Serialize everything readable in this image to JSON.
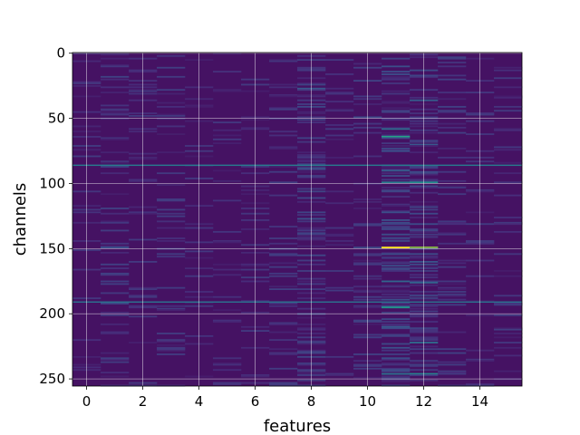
{
  "chart_data": {
    "type": "heatmap",
    "title": "",
    "xlabel": "features",
    "ylabel": "channels",
    "n_columns": 16,
    "n_rows": 256,
    "xlim": [
      -0.5,
      15.5
    ],
    "ylim": [
      255.5,
      -0.5
    ],
    "x_ticks": [
      0,
      2,
      4,
      6,
      8,
      10,
      12,
      14
    ],
    "x_tick_labels": [
      "0",
      "2",
      "4",
      "6",
      "8",
      "10",
      "12",
      "14"
    ],
    "y_ticks": [
      0,
      50,
      100,
      150,
      200,
      250
    ],
    "y_tick_labels": [
      "0",
      "50",
      "100",
      "150",
      "200",
      "250"
    ],
    "grid": true,
    "colormap": "viridis",
    "background_value": 0.05,
    "column_activity": [
      0.1,
      0.22,
      0.1,
      0.14,
      0.08,
      0.1,
      0.1,
      0.16,
      0.3,
      0.1,
      0.22,
      0.45,
      0.38,
      0.18,
      0.1,
      0.12
    ],
    "hot_cells": [
      {
        "column": 11,
        "row": 149,
        "value": 1.0
      },
      {
        "column": 12,
        "row": 149,
        "value": 0.85
      },
      {
        "column": 11,
        "row": 64,
        "value": 0.58
      },
      {
        "column": 11,
        "row": 195,
        "value": 0.52
      },
      {
        "column": 12,
        "row": 99,
        "value": 0.48
      },
      {
        "column": 12,
        "row": 246,
        "value": 0.45
      },
      {
        "column": 11,
        "row": 99,
        "value": 0.42
      },
      {
        "column": 11,
        "row": 246,
        "value": 0.38
      },
      {
        "column": 12,
        "row": 222,
        "value": 0.35
      },
      {
        "column": 11,
        "row": 58,
        "value": 0.35
      },
      {
        "column": 11,
        "row": 175,
        "value": 0.33
      },
      {
        "column": 12,
        "row": 176,
        "value": 0.32
      },
      {
        "column": 11,
        "row": 90,
        "value": 0.3
      },
      {
        "column": 12,
        "row": 36,
        "value": 0.3
      },
      {
        "column": 8,
        "row": 27,
        "value": 0.28
      },
      {
        "column": 8,
        "row": 88,
        "value": 0.25
      },
      {
        "column": 8,
        "row": 127,
        "value": 0.25
      },
      {
        "column": 1,
        "row": 149,
        "value": 0.25
      },
      {
        "column": 1,
        "row": 192,
        "value": 0.22
      },
      {
        "column": 10,
        "row": 49,
        "value": 0.22
      },
      {
        "column": 10,
        "row": 149,
        "value": 0.22
      },
      {
        "column": 12,
        "row": 70,
        "value": 0.28
      },
      {
        "column": 12,
        "row": 160,
        "value": 0.26
      },
      {
        "column": 11,
        "row": 210,
        "value": 0.28
      },
      {
        "column": 11,
        "row": 122,
        "value": 0.24
      }
    ],
    "full_width_rows": [
      {
        "row": 86,
        "value": 0.42
      },
      {
        "row": 191,
        "value": 0.38
      }
    ]
  }
}
